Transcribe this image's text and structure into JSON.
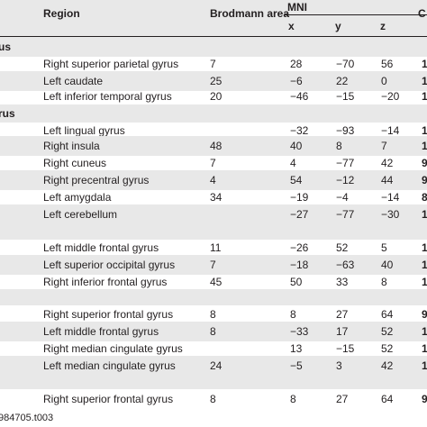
{
  "header": {
    "region": "Region",
    "brodmann": "Brodmann area",
    "mni": "MNI",
    "x": "x",
    "y": "y",
    "z": "z",
    "last_col_partial": "C"
  },
  "groups": {
    "g1": "us",
    "g2": "rus"
  },
  "rows": [
    {
      "region": "Right superior parietal gyrus",
      "ba": "7",
      "x": "28",
      "y": "−70",
      "z": "56",
      "k": "1"
    },
    {
      "region": "Left caudate",
      "ba": "25",
      "x": "−6",
      "y": "22",
      "z": "0",
      "k": "1"
    },
    {
      "region": "Left inferior temporal gyrus",
      "ba": "20",
      "x": "−46",
      "y": "−15",
      "z": "−20",
      "k": "1"
    },
    {
      "region": "Left lingual gyrus",
      "ba": "",
      "x": "−32",
      "y": "−93",
      "z": "−14",
      "k": "1"
    },
    {
      "region": "Right insula",
      "ba": "48",
      "x": "40",
      "y": "8",
      "z": "7",
      "k": "1"
    },
    {
      "region": "Right cuneus",
      "ba": "7",
      "x": "4",
      "y": "−77",
      "z": "42",
      "k": "9"
    },
    {
      "region": "Right precentral gyrus",
      "ba": "4",
      "x": "54",
      "y": "−12",
      "z": "44",
      "k": "9"
    },
    {
      "region": "Left amygdala",
      "ba": "34",
      "x": "−19",
      "y": "−4",
      "z": "−14",
      "k": "8"
    },
    {
      "region": "Left cerebellum",
      "ba": "",
      "x": "−27",
      "y": "−77",
      "z": "−30",
      "k": "1"
    },
    {
      "region": "Left middle frontal gyrus",
      "ba": "11",
      "x": "−26",
      "y": "52",
      "z": "5",
      "k": "1"
    },
    {
      "region": "Left superior occipital gyrus",
      "ba": "7",
      "x": "−18",
      "y": "−63",
      "z": "40",
      "k": "1"
    },
    {
      "region": "Right inferior frontal gyrus",
      "ba": "45",
      "x": "50",
      "y": "33",
      "z": "8",
      "k": "1"
    },
    {
      "region": "Right superior frontal gyrus",
      "ba": "8",
      "x": "8",
      "y": "27",
      "z": "64",
      "k": "9"
    },
    {
      "region": "Left middle frontal gyrus",
      "ba": "8",
      "x": "−33",
      "y": "17",
      "z": "52",
      "k": "1"
    },
    {
      "region": "Right median cingulate gyrus",
      "ba": "",
      "x": "13",
      "y": "−15",
      "z": "52",
      "k": "1"
    },
    {
      "region": "Left median cingulate gyrus",
      "ba": "24",
      "x": "−5",
      "y": "3",
      "z": "42",
      "k": "1"
    },
    {
      "region": "Right superior frontal gyrus",
      "ba": "8",
      "x": "8",
      "y": "27",
      "z": "64",
      "k": "9"
    }
  ],
  "caption": "984705.t003"
}
